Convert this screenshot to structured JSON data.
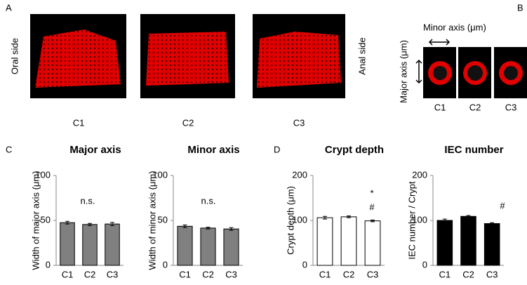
{
  "panel_a": {
    "label": "A",
    "left_label": "Oral side",
    "right_label": "Anal side",
    "images": [
      "C1",
      "C2",
      "C3"
    ]
  },
  "panel_b": {
    "label": "B",
    "x_axis": "Minor axis (μm)",
    "y_axis": "Major axis (μm)",
    "images": [
      "C1",
      "C2",
      "C3"
    ]
  },
  "panel_c": {
    "label": "C"
  },
  "panel_d": {
    "label": "D"
  },
  "chart_data": [
    {
      "type": "bar",
      "title": "Major axis",
      "ylabel": "Width of  major axis (μm)",
      "categories": [
        "C1",
        "C2",
        "C3"
      ],
      "values": [
        47.5,
        45.5,
        46
      ],
      "errors": [
        1.5,
        1.2,
        1.8
      ],
      "color": "#808080",
      "ylim": [
        0,
        100
      ],
      "yticks": [
        0,
        50,
        100
      ],
      "annotations": [
        "n.s."
      ]
    },
    {
      "type": "bar",
      "title": "Minor axis",
      "ylabel": "Width of minor axis (μm)",
      "categories": [
        "C1",
        "C2",
        "C3"
      ],
      "values": [
        43.5,
        41.5,
        40.5
      ],
      "errors": [
        1.5,
        1,
        1.5
      ],
      "color": "#808080",
      "ylim": [
        0,
        100
      ],
      "yticks": [
        0,
        50,
        100
      ],
      "annotations": [
        "n.s."
      ]
    },
    {
      "type": "bar",
      "title": "Crypt depth",
      "ylabel": "Crypt depth (μm)",
      "categories": [
        "C1",
        "C2",
        "C3"
      ],
      "values": [
        106,
        108,
        99
      ],
      "errors": [
        3,
        2,
        2
      ],
      "color": "#ffffff",
      "ylim": [
        0,
        200
      ],
      "yticks": [
        0,
        100,
        200
      ],
      "annotations": [
        "*",
        "#"
      ]
    },
    {
      "type": "bar",
      "title": "IEC number",
      "ylabel": "IEC number / Crypt",
      "categories": [
        "C1",
        "C2",
        "C3"
      ],
      "values": [
        100,
        109,
        93
      ],
      "errors": [
        3,
        2,
        2
      ],
      "color": "#000000",
      "ylim": [
        0,
        200
      ],
      "yticks": [
        0,
        100,
        200
      ],
      "annotations": [
        "#"
      ]
    }
  ]
}
